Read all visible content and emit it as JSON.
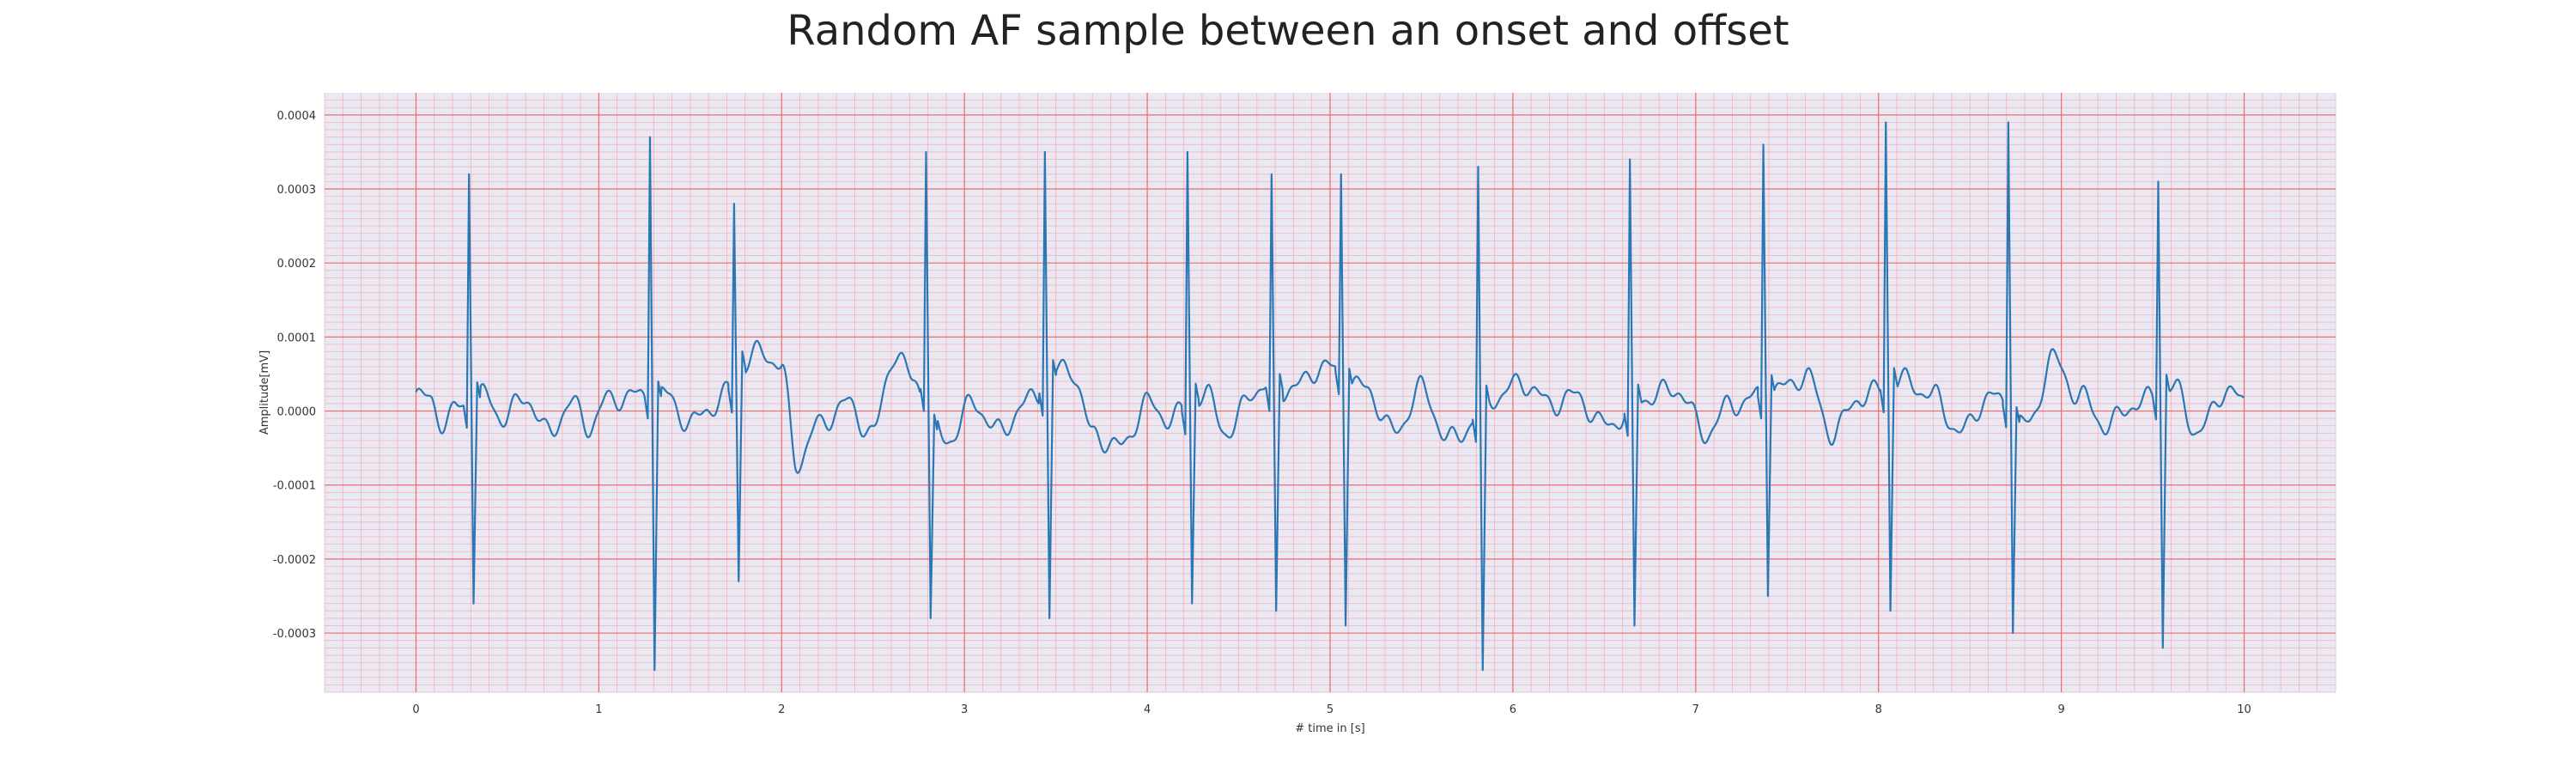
{
  "chart_data": {
    "type": "line",
    "title": "Random AF sample between an onset and offset",
    "xlabel": "# time in [s]",
    "ylabel": "Amplitude[mV]",
    "xlim": [
      -0.5,
      10.5
    ],
    "ylim": [
      -0.00038,
      0.00043
    ],
    "xticks": [
      "0",
      "1",
      "2",
      "3",
      "4",
      "5",
      "6",
      "7",
      "8",
      "9",
      "10"
    ],
    "yticks": [
      "0.0004",
      "0.0003",
      "0.0002",
      "0.0001",
      "0.0000",
      "-0.0001",
      "-0.0002",
      "-0.0003"
    ],
    "grid": true,
    "colors": {
      "line": "#2a77b5",
      "plot_bg": "#eae8f2",
      "major_grid": "#ef6a6a",
      "minor_grid": "#f3b4bc"
    },
    "series": [
      {
        "beats": [
          {
            "t": 0.29,
            "peak": 0.00032,
            "trough": -0.00026
          },
          {
            "t": 1.28,
            "peak": 0.00037,
            "trough": -0.00035
          },
          {
            "t": 1.74,
            "peak": 0.00028,
            "trough": -0.00023
          },
          {
            "t": 2.79,
            "peak": 0.00035,
            "trough": -0.00028
          },
          {
            "t": 3.44,
            "peak": 0.00035,
            "trough": -0.00028
          },
          {
            "t": 4.22,
            "peak": 0.00035,
            "trough": -0.00026
          },
          {
            "t": 4.68,
            "peak": 0.00032,
            "trough": -0.00027
          },
          {
            "t": 5.06,
            "peak": 0.00032,
            "trough": -0.00029
          },
          {
            "t": 5.81,
            "peak": 0.00033,
            "trough": -0.00035
          },
          {
            "t": 6.64,
            "peak": 0.00034,
            "trough": -0.00029
          },
          {
            "t": 7.37,
            "peak": 0.00036,
            "trough": -0.00025
          },
          {
            "t": 8.04,
            "peak": 0.00039,
            "trough": -0.00027
          },
          {
            "t": 8.71,
            "peak": 0.00039,
            "trough": -0.0003
          },
          {
            "t": 9.53,
            "peak": 0.00031,
            "trough": -0.00032
          }
        ],
        "baseline": [
          [
            0.0,
            2e-05
          ],
          [
            0.08,
            1.5e-05
          ],
          [
            0.16,
            -2e-05
          ],
          [
            0.22,
            5e-06
          ],
          [
            0.38,
            2e-05
          ],
          [
            0.48,
            -1e-05
          ],
          [
            0.6,
            2e-05
          ],
          [
            0.72,
            -3e-05
          ],
          [
            0.85,
            1e-05
          ],
          [
            0.95,
            -2e-05
          ],
          [
            1.05,
            1.5e-05
          ],
          [
            1.15,
            2e-05
          ],
          [
            1.38,
            2e-05
          ],
          [
            1.5,
            -2e-05
          ],
          [
            1.6,
            5e-06
          ],
          [
            1.9,
            8e-05
          ],
          [
            2.0,
            6e-05
          ],
          [
            2.08,
            -7e-05
          ],
          [
            2.2,
            -2e-05
          ],
          [
            2.35,
            1e-05
          ],
          [
            2.5,
            -3e-05
          ],
          [
            2.62,
            8e-05
          ],
          [
            2.72,
            4e-05
          ],
          [
            2.9,
            -4e-05
          ],
          [
            3.05,
            1e-05
          ],
          [
            3.2,
            -3e-05
          ],
          [
            3.32,
            1e-05
          ],
          [
            3.58,
            6e-05
          ],
          [
            3.7,
            -3e-05
          ],
          [
            3.85,
            -5e-05
          ],
          [
            4.0,
            1e-05
          ],
          [
            4.12,
            -1e-05
          ],
          [
            4.32,
            2e-05
          ],
          [
            4.45,
            -3e-05
          ],
          [
            4.58,
            3e-05
          ],
          [
            4.8,
            3e-05
          ],
          [
            4.95,
            6e-05
          ],
          [
            5.2,
            3e-05
          ],
          [
            5.35,
            -3e-05
          ],
          [
            5.5,
            3e-05
          ],
          [
            5.65,
            -4e-05
          ],
          [
            5.92,
            2e-05
          ],
          [
            6.05,
            4e-05
          ],
          [
            6.2,
            1e-05
          ],
          [
            6.35,
            2e-05
          ],
          [
            6.5,
            -2e-05
          ],
          [
            6.75,
            2e-05
          ],
          [
            6.9,
            3e-05
          ],
          [
            7.05,
            -3e-05
          ],
          [
            7.2,
            1e-05
          ],
          [
            7.48,
            3e-05
          ],
          [
            7.6,
            5e-05
          ],
          [
            7.75,
            -3e-05
          ],
          [
            7.9,
            2e-05
          ],
          [
            8.15,
            4e-05
          ],
          [
            8.3,
            2e-05
          ],
          [
            8.45,
            -3e-05
          ],
          [
            8.6,
            2e-05
          ],
          [
            8.82,
            -2e-05
          ],
          [
            8.95,
            7e-05
          ],
          [
            9.1,
            2e-05
          ],
          [
            9.25,
            -2e-05
          ],
          [
            9.4,
            1e-05
          ],
          [
            9.62,
            3e-05
          ],
          [
            9.75,
            -3e-05
          ],
          [
            9.9,
            3e-05
          ],
          [
            10.0,
            1e-05
          ]
        ]
      }
    ]
  }
}
